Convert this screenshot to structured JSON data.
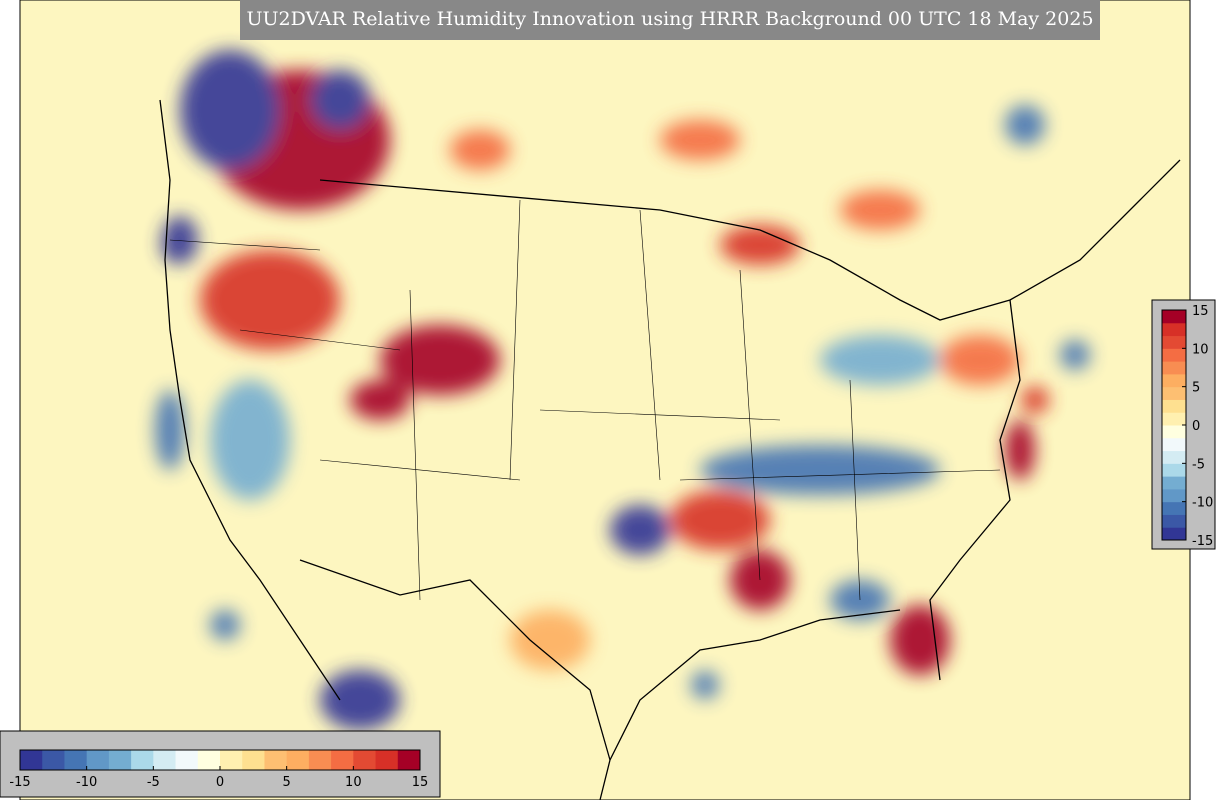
{
  "title": "UU2DVAR Relative Humidity Innovation using HRRR Background 00 UTC 18 May 2025",
  "colorbar": {
    "range": [
      -15,
      15
    ],
    "ticks": [
      -15,
      -10,
      -5,
      0,
      5,
      10,
      15
    ],
    "colors": [
      "#313695",
      "#3b58a6",
      "#4575b4",
      "#6198c7",
      "#74add1",
      "#abd9e9",
      "#d4ecf3",
      "#f2f9fb",
      "#ffffe0",
      "#fff0b0",
      "#fee090",
      "#fdbf72",
      "#fdae61",
      "#f88d52",
      "#f46d43",
      "#e34a33",
      "#d73027",
      "#a50026"
    ]
  }
}
